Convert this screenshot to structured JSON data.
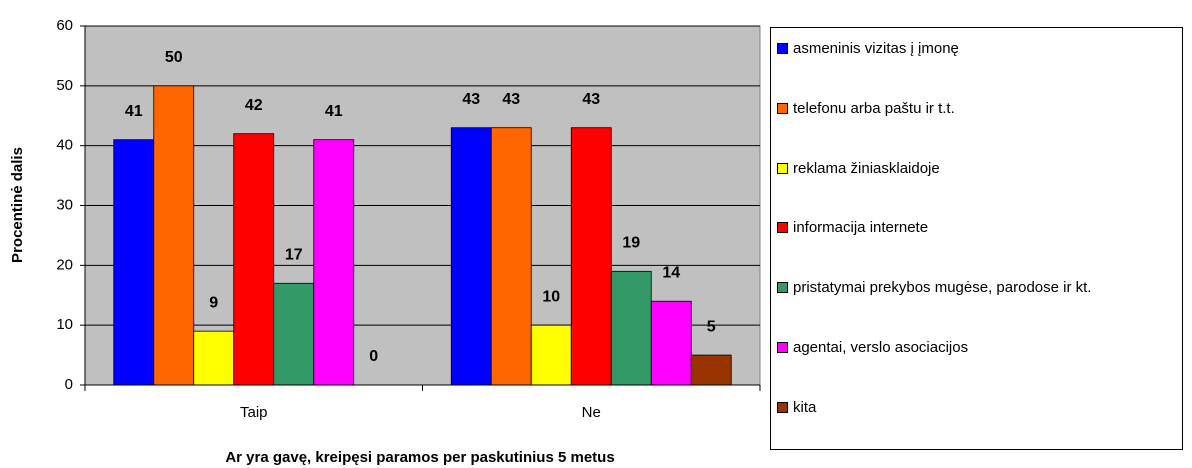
{
  "chart_data": {
    "type": "bar",
    "ylabel": "Procentinė dalis",
    "xlabel": "Ar yra gavę, kreipęsi paramos per paskutinius 5 metus",
    "categories": [
      "Taip",
      "Ne"
    ],
    "series": [
      {
        "name": "asmeninis vizitas į įmonę",
        "color": "#0000ff",
        "values": [
          41,
          43
        ]
      },
      {
        "name": "telefonu arba paštu ir t.t.",
        "color": "#ff6600",
        "values": [
          50,
          43
        ]
      },
      {
        "name": "reklama žiniasklaidoje",
        "color": "#ffff00",
        "values": [
          9,
          10
        ]
      },
      {
        "name": "informacija internete",
        "color": "#ff0000",
        "values": [
          42,
          43
        ]
      },
      {
        "name": "pristatymai prekybos mugėse, parodose ir kt.",
        "color": "#339966",
        "values": [
          17,
          19
        ]
      },
      {
        "name": "agentai, verslo asociacijos",
        "color": "#ff00ff",
        "values": [
          41,
          14
        ]
      },
      {
        "name": "kita",
        "color": "#993300",
        "values": [
          0,
          5
        ]
      }
    ],
    "ylim": [
      0,
      60
    ],
    "yticks": [
      0,
      10,
      20,
      30,
      40,
      50,
      60
    ],
    "grid": true,
    "legend": "right"
  }
}
